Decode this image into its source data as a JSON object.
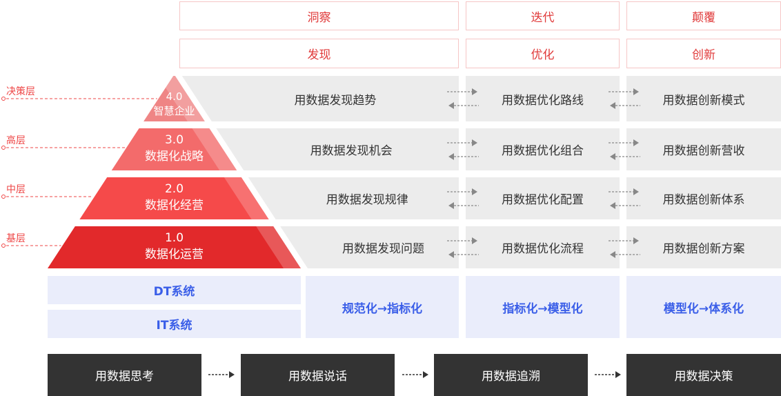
{
  "headers": {
    "row1": [
      "洞察",
      "迭代",
      "颠覆"
    ],
    "row2": [
      "发现",
      "优化",
      "创新"
    ]
  },
  "levels": [
    {
      "label": "决策层",
      "version": "4.0",
      "name": "智慧企业",
      "color": "#ef8585",
      "cells": [
        "用数据发现趋势",
        "用数据优化路线",
        "用数据创新模式"
      ]
    },
    {
      "label": "高层",
      "version": "3.0",
      "name": "数据化战略",
      "color": "#f36b6b",
      "cells": [
        "用数据发现机会",
        "用数据优化组合",
        "用数据创新营收"
      ]
    },
    {
      "label": "中层",
      "version": "2.0",
      "name": "数据化经营",
      "color": "#f54a4a",
      "cells": [
        "用数据发现规律",
        "用数据优化配置",
        "用数据创新体系"
      ]
    },
    {
      "label": "基层",
      "version": "1.0",
      "name": "数据化运营",
      "color": "#e2292b",
      "cells": [
        "用数据发现问题",
        "用数据优化流程",
        "用数据创新方案"
      ]
    }
  ],
  "systems": [
    "DT系统",
    "IT系统"
  ],
  "transforms": [
    "规范化→指标化",
    "指标化→模型化",
    "模型化→体系化"
  ],
  "flow": [
    "用数据思考",
    "用数据说话",
    "用数据追溯",
    "用数据决策"
  ],
  "colors": {
    "accent": "#e03a3a",
    "blue": "#3a5ee8",
    "dark": "#333333"
  }
}
